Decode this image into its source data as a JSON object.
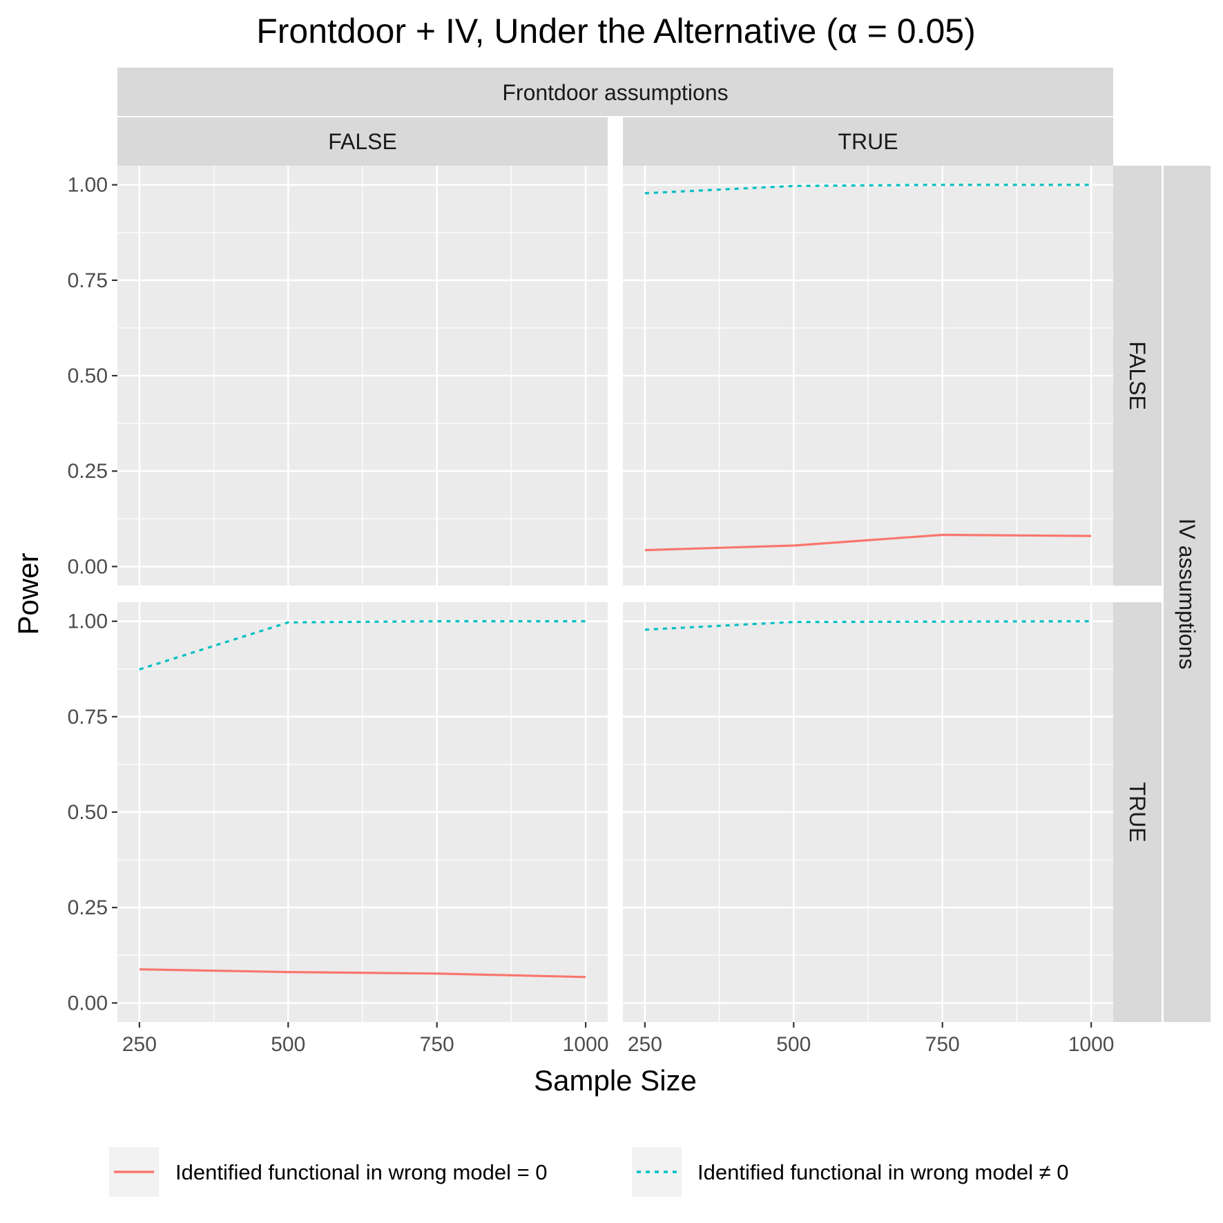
{
  "chart_data": {
    "type": "line",
    "title": "Frontdoor + IV, Under the Alternative (α = 0.05)",
    "xlabel": "Sample Size",
    "ylabel": "Power",
    "facet_col_title": "Frontdoor assumptions",
    "facet_row_title": "IV assumptions",
    "col_levels": [
      "FALSE",
      "TRUE"
    ],
    "row_levels": [
      "FALSE",
      "TRUE"
    ],
    "x_ticks": [
      250,
      500,
      750,
      1000
    ],
    "x_tick_labels": [
      "250",
      "500",
      "750",
      "1000"
    ],
    "y_ticks": [
      0,
      0.25,
      0.5,
      0.75,
      1.0
    ],
    "y_tick_labels": [
      "0.00",
      "0.25",
      "0.50",
      "0.75",
      "1.00"
    ],
    "xlim": [
      213,
      1037
    ],
    "ylim": [
      -0.05,
      1.05
    ],
    "grid": true,
    "legend_position": "bottom",
    "series_styles": [
      {
        "name": "Identified functional in wrong model = 0",
        "color": "#F8766D",
        "dash": "solid"
      },
      {
        "name": "Identified functional in wrong model ≠ 0",
        "color": "#00BFC4",
        "dash": "dotted"
      }
    ],
    "panels": [
      {
        "frontdoor": "FALSE",
        "iv": "FALSE",
        "series": []
      },
      {
        "frontdoor": "TRUE",
        "iv": "FALSE",
        "series": [
          {
            "name": "Identified functional in wrong model = 0",
            "x": [
              250,
              500,
              750,
              1000
            ],
            "values": [
              0.043,
              0.055,
              0.083,
              0.08
            ]
          },
          {
            "name": "Identified functional in wrong model ≠ 0",
            "x": [
              250,
              500,
              750,
              1000
            ],
            "values": [
              0.978,
              0.997,
              1.0,
              1.0
            ]
          }
        ]
      },
      {
        "frontdoor": "FALSE",
        "iv": "TRUE",
        "series": [
          {
            "name": "Identified functional in wrong model = 0",
            "x": [
              250,
              500,
              750,
              1000
            ],
            "values": [
              0.088,
              0.081,
              0.077,
              0.068
            ]
          },
          {
            "name": "Identified functional in wrong model ≠ 0",
            "x": [
              250,
              500,
              750,
              1000
            ],
            "values": [
              0.874,
              0.997,
              1.0,
              1.0
            ]
          }
        ]
      },
      {
        "frontdoor": "TRUE",
        "iv": "TRUE",
        "series": [
          {
            "name": "Identified functional in wrong model = 0",
            "x": [
              250,
              500,
              750,
              1000
            ],
            "values": [
              null,
              null,
              null,
              null
            ]
          },
          {
            "name": "Identified functional in wrong model ≠ 0",
            "x": [
              250,
              500,
              750,
              1000
            ],
            "values": [
              0.978,
              0.998,
              0.999,
              1.0
            ]
          }
        ]
      }
    ]
  }
}
